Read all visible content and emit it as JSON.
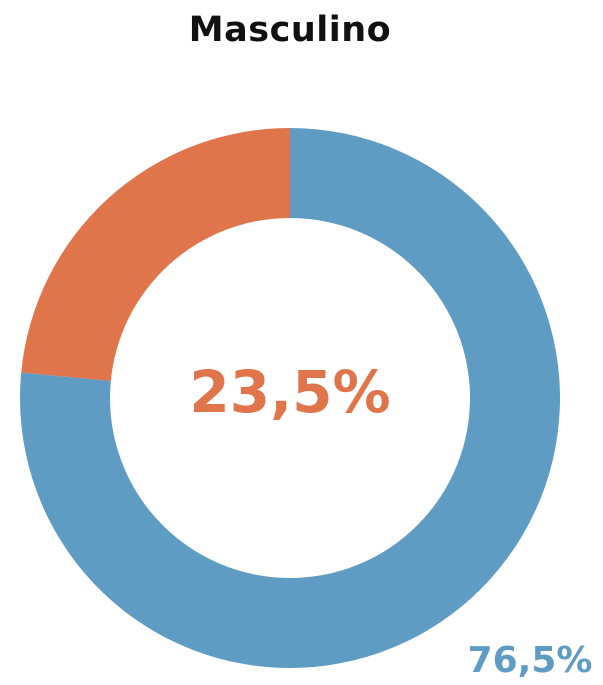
{
  "chart_data": {
    "type": "pie",
    "title": "Masculino",
    "categories": [
      "",
      ""
    ],
    "values": [
      23.5,
      76.5
    ],
    "value_labels": [
      "23,5%",
      "76,5%"
    ],
    "colors": [
      "#e0754b",
      "#5e9cc3"
    ],
    "donut": true
  }
}
